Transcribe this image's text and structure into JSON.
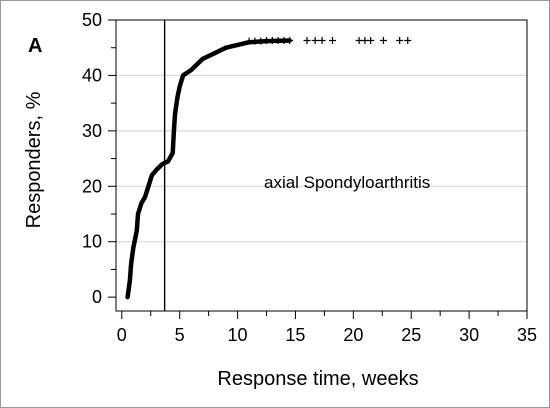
{
  "chart_data": {
    "type": "line",
    "panel_label": "A",
    "annotation": "axial Spondyloarthritis",
    "xlabel": "Response time, weeks",
    "ylabel": "Responders, %",
    "xlim": [
      -0.5,
      35
    ],
    "ylim": [
      -2.5,
      50
    ],
    "x_ticks": [
      0,
      5,
      10,
      15,
      20,
      25,
      30,
      35
    ],
    "y_ticks": [
      0,
      10,
      20,
      30,
      40,
      50
    ],
    "grid": "horizontal",
    "reference_line_x": 3.7,
    "series": [
      {
        "curve": [
          [
            0.5,
            0
          ],
          [
            0.7,
            3
          ],
          [
            0.8,
            6
          ],
          [
            1.0,
            9
          ],
          [
            1.3,
            12
          ],
          [
            1.4,
            15
          ],
          [
            1.7,
            17
          ],
          [
            2.0,
            18
          ],
          [
            2.3,
            20
          ],
          [
            2.6,
            22
          ],
          [
            3.0,
            23
          ],
          [
            3.5,
            24
          ],
          [
            4.0,
            24.5
          ],
          [
            4.4,
            26
          ],
          [
            4.5,
            30
          ],
          [
            4.6,
            33
          ],
          [
            4.8,
            36
          ],
          [
            5.0,
            38
          ],
          [
            5.3,
            40
          ],
          [
            6.0,
            41
          ],
          [
            7.0,
            43
          ],
          [
            8.0,
            44
          ],
          [
            9.0,
            45
          ],
          [
            10.0,
            45.5
          ],
          [
            11.0,
            46
          ],
          [
            12.5,
            46.2
          ],
          [
            14.5,
            46.3
          ]
        ],
        "censored": [
          [
            11.0,
            46.2
          ],
          [
            11.5,
            46.2
          ],
          [
            12.0,
            46.2
          ],
          [
            12.5,
            46.3
          ],
          [
            13.0,
            46.3
          ],
          [
            13.5,
            46.3
          ],
          [
            14.0,
            46.3
          ],
          [
            14.5,
            46.3
          ],
          [
            16.0,
            46.3
          ],
          [
            16.7,
            46.3
          ],
          [
            17.3,
            46.3
          ],
          [
            18.2,
            46.3
          ],
          [
            20.5,
            46.3
          ],
          [
            21.0,
            46.3
          ],
          [
            21.5,
            46.3
          ],
          [
            22.6,
            46.3
          ],
          [
            24.0,
            46.3
          ],
          [
            24.7,
            46.3
          ]
        ]
      }
    ]
  }
}
